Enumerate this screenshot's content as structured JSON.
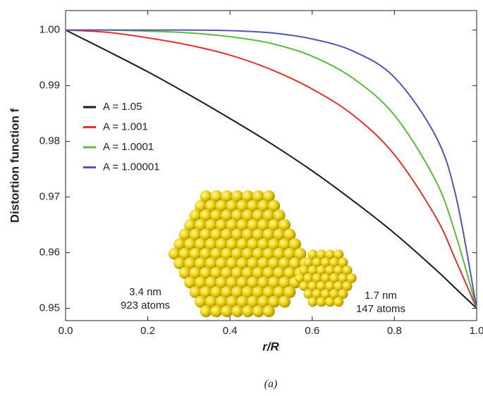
{
  "chart_data": {
    "type": "line",
    "x_label": "r/R",
    "y_label": "Distortion function f",
    "caption": "(a)",
    "x": [
      0,
      0.1,
      0.2,
      0.3,
      0.4,
      0.5,
      0.6,
      0.7,
      0.8,
      0.9,
      0.95,
      1.0
    ],
    "series": [
      {
        "name": "A = 1.05",
        "color": "#1a1a1a",
        "values": [
          1.0,
          0.9963,
          0.9925,
          0.9884,
          0.9841,
          0.9796,
          0.9747,
          0.9693,
          0.9635,
          0.957,
          0.9535,
          0.95
        ]
      },
      {
        "name": "A = 1.001",
        "color": "#e8302a",
        "values": [
          1.0,
          0.9996,
          0.9986,
          0.9973,
          0.9955,
          0.9929,
          0.9894,
          0.9847,
          0.9776,
          0.9665,
          0.9585,
          0.95
        ]
      },
      {
        "name": "A = 1.0001",
        "color": "#5dbb3a",
        "values": [
          1.0,
          1.0,
          0.9998,
          0.9995,
          0.9988,
          0.9976,
          0.9953,
          0.9913,
          0.9847,
          0.973,
          0.963,
          0.95
        ]
      },
      {
        "name": "A = 1.00001",
        "color": "#5555b0",
        "values": [
          1.0,
          1.0,
          1.0,
          1.0,
          0.9999,
          0.9995,
          0.9984,
          0.9962,
          0.9915,
          0.981,
          0.97,
          0.95
        ]
      }
    ],
    "xlim": [
      0,
      1
    ],
    "ylim": [
      0.9478,
      1.0035
    ],
    "xticks": [
      {
        "value": 0,
        "label": "0.0"
      },
      0.2,
      0.4,
      0.6,
      0.8,
      {
        "value": 1,
        "label": "1.0"
      }
    ],
    "yticks": [
      0.95,
      0.96,
      0.97,
      0.98,
      0.99,
      {
        "value": 1,
        "label": "1.00"
      }
    ],
    "legend": "upper left",
    "annotations": [
      "3.4 nm",
      "923 atoms",
      "1.7 nm",
      "147 atoms"
    ]
  }
}
